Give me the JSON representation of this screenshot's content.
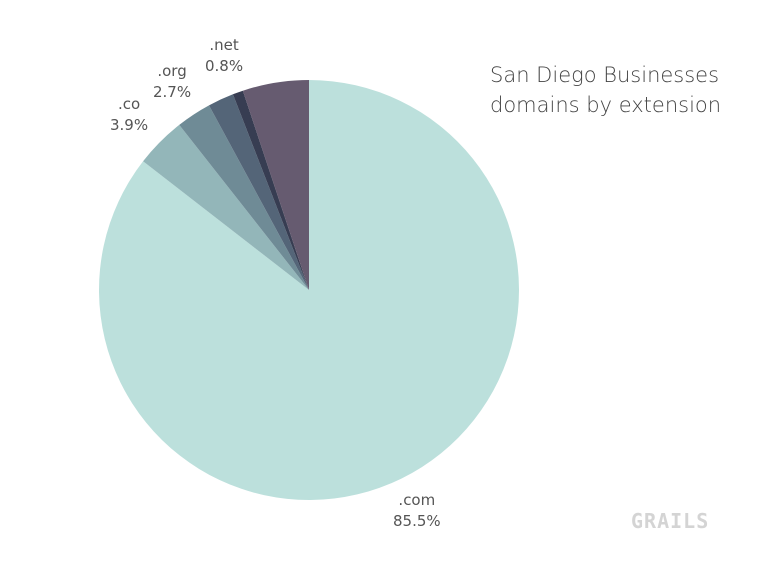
{
  "chart_data": {
    "type": "pie",
    "title": [
      "San Diego Businesses",
      "domains by extension"
    ],
    "start": "top",
    "direction": "clockwise",
    "slices": [
      {
        "label": ".com",
        "value": 85.5,
        "value_label": "85.5%",
        "color": "#bce0dc"
      },
      {
        "label": ".co",
        "value": 3.9,
        "value_label": "3.9%",
        "color": "#93b6b9"
      },
      {
        "label": ".org",
        "value": 2.7,
        "value_label": "2.7%",
        "color": "#6f8b96"
      },
      {
        "label": "",
        "value": 2.0,
        "value_label": "",
        "color": "#546578"
      },
      {
        "label": ".net",
        "value": 0.8,
        "value_label": "0.8%",
        "color": "#373d52"
      },
      {
        "label": "",
        "value": 5.1,
        "value_label": "",
        "color": "#665b70"
      }
    ]
  },
  "watermark": "GRAILS"
}
